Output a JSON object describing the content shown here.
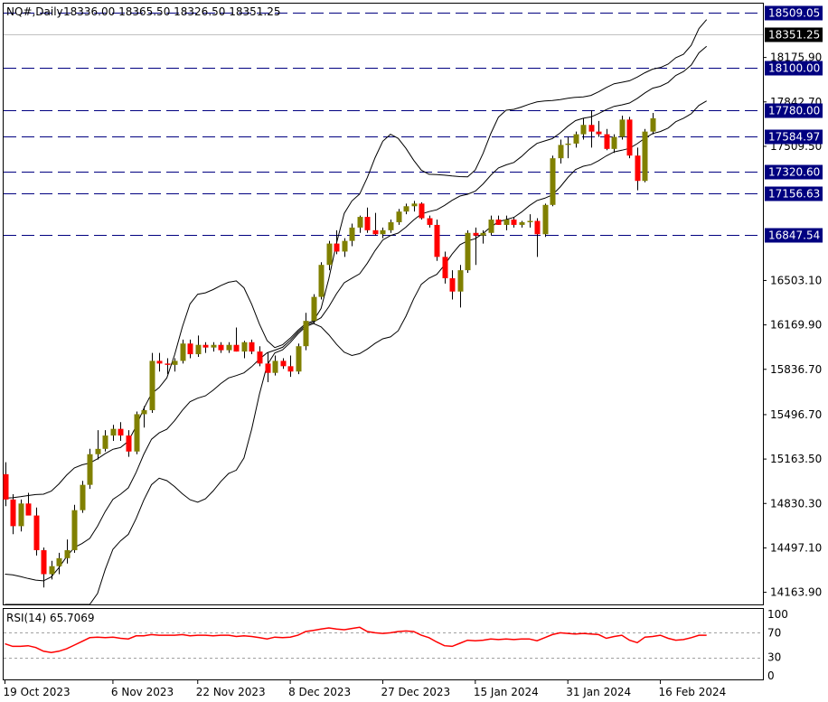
{
  "header": {
    "symbol": "NQ#,Daily",
    "ohlc": "18336.00 18365.50 18326.50 18351.25"
  },
  "colors": {
    "background": "#ffffff",
    "bull_candle": "#808000",
    "bear_candle": "#ff0000",
    "wick": "#000000",
    "bollinger": "#000000",
    "level_line": "#000080",
    "level_label_bg": "#000080",
    "current_label_bg": "#000000",
    "rsi_line": "#ff0000",
    "rsi_levels": "#a0a0a0"
  },
  "chart_data": [
    {
      "type": "candlestick",
      "title": "NQ#,Daily",
      "subtitle": "18336.00 18365.50 18326.50 18351.25",
      "y_axis_ticks": [
        "18175.90",
        "17842.70",
        "17509.50",
        "16503.10",
        "16169.90",
        "15836.70",
        "15496.70",
        "15163.50",
        "14830.30",
        "14497.10",
        "14163.90"
      ],
      "ylim": [
        14073,
        18580
      ],
      "x_axis_ticks": [
        {
          "label": "19 Oct 2023",
          "index": 0
        },
        {
          "label": "6 Nov 2023",
          "index": 14
        },
        {
          "label": "22 Nov 2023",
          "index": 25
        },
        {
          "label": "8 Dec 2023",
          "index": 37
        },
        {
          "label": "27 Dec 2023",
          "index": 49
        },
        {
          "label": "15 Jan 2024",
          "index": 61
        },
        {
          "label": "31 Jan 2024",
          "index": 73
        },
        {
          "label": "16 Feb 2024",
          "index": 85
        }
      ],
      "horizontal_levels": [
        "18509.05",
        "18100.00",
        "17780.00",
        "17584.97",
        "17320.60",
        "17156.63",
        "16847.54"
      ],
      "current_price_label": "18351.25",
      "candles": [
        [
          15050,
          15140,
          14810,
          14860
        ],
        [
          14860,
          14900,
          14600,
          14660
        ],
        [
          14660,
          14860,
          14620,
          14830
        ],
        [
          14830,
          14910,
          14780,
          14740
        ],
        [
          14740,
          14800,
          14440,
          14480
        ],
        [
          14480,
          14500,
          14200,
          14300
        ],
        [
          14300,
          14400,
          14260,
          14360
        ],
        [
          14360,
          14460,
          14300,
          14420
        ],
        [
          14420,
          14560,
          14380,
          14480
        ],
        [
          14480,
          14820,
          14460,
          14780
        ],
        [
          14780,
          15000,
          14760,
          14970
        ],
        [
          14970,
          15240,
          14940,
          15200
        ],
        [
          15200,
          15380,
          15160,
          15240
        ],
        [
          15240,
          15380,
          15220,
          15340
        ],
        [
          15340,
          15420,
          15300,
          15390
        ],
        [
          15390,
          15440,
          15300,
          15340
        ],
        [
          15340,
          15380,
          15180,
          15220
        ],
        [
          15220,
          15520,
          15200,
          15500
        ],
        [
          15500,
          15560,
          15400,
          15530
        ],
        [
          15530,
          15960,
          15510,
          15900
        ],
        [
          15900,
          15960,
          15820,
          15880
        ],
        [
          15880,
          15920,
          15800,
          15870
        ],
        [
          15870,
          15920,
          15820,
          15900
        ],
        [
          15900,
          16060,
          15880,
          16030
        ],
        [
          16030,
          16060,
          15920,
          15950
        ],
        [
          15950,
          16090,
          15930,
          16020
        ],
        [
          16020,
          16040,
          15960,
          16000
        ],
        [
          16000,
          16040,
          15970,
          16020
        ],
        [
          16020,
          16040,
          15960,
          15980
        ],
        [
          15980,
          16040,
          15960,
          16020
        ],
        [
          16020,
          16150,
          15970,
          15970
        ],
        [
          15970,
          16050,
          15920,
          16040
        ],
        [
          16040,
          16060,
          15950,
          15970
        ],
        [
          15970,
          16010,
          15860,
          15880
        ],
        [
          15880,
          15960,
          15740,
          15810
        ],
        [
          15810,
          15940,
          15790,
          15900
        ],
        [
          15900,
          15920,
          15840,
          15860
        ],
        [
          15860,
          15940,
          15780,
          15820
        ],
        [
          15820,
          16030,
          15800,
          16010
        ],
        [
          16010,
          16260,
          15980,
          16200
        ],
        [
          16200,
          16400,
          16180,
          16380
        ],
        [
          16380,
          16640,
          16360,
          16620
        ],
        [
          16620,
          16800,
          16580,
          16780
        ],
        [
          16780,
          16880,
          16700,
          16720
        ],
        [
          16720,
          16820,
          16680,
          16800
        ],
        [
          16800,
          16930,
          16760,
          16900
        ],
        [
          16900,
          16990,
          16860,
          16980
        ],
        [
          16980,
          17050,
          16860,
          16880
        ],
        [
          16880,
          17010,
          16840,
          16850
        ],
        [
          16850,
          16900,
          16820,
          16880
        ],
        [
          16880,
          16960,
          16860,
          16940
        ],
        [
          16940,
          17040,
          16920,
          17020
        ],
        [
          17020,
          17080,
          17000,
          17060
        ],
        [
          17060,
          17100,
          17020,
          17080
        ],
        [
          17080,
          17090,
          16960,
          16970
        ],
        [
          16970,
          16990,
          16900,
          16920
        ],
        [
          16920,
          16960,
          16650,
          16680
        ],
        [
          16680,
          16720,
          16480,
          16520
        ],
        [
          16520,
          16580,
          16360,
          16420
        ],
        [
          16420,
          16620,
          16300,
          16580
        ],
        [
          16580,
          16880,
          16560,
          16860
        ],
        [
          16860,
          16900,
          16620,
          16840
        ],
        [
          16840,
          16880,
          16780,
          16860
        ],
        [
          16860,
          16990,
          16840,
          16960
        ],
        [
          16960,
          16990,
          16920,
          16920
        ],
        [
          16920,
          16990,
          16880,
          16960
        ],
        [
          16960,
          16980,
          16900,
          16920
        ],
        [
          16920,
          16950,
          16900,
          16940
        ],
        [
          16940,
          17000,
          16900,
          16950
        ],
        [
          16950,
          16970,
          16680,
          16850
        ],
        [
          16850,
          17080,
          16830,
          17070
        ],
        [
          17070,
          17440,
          17060,
          17420
        ],
        [
          17420,
          17560,
          17380,
          17520
        ],
        [
          17520,
          17580,
          17420,
          17530
        ],
        [
          17530,
          17620,
          17500,
          17600
        ],
        [
          17600,
          17720,
          17560,
          17670
        ],
        [
          17670,
          17780,
          17500,
          17620
        ],
        [
          17620,
          17700,
          17580,
          17600
        ],
        [
          17600,
          17640,
          17480,
          17490
        ],
        [
          17490,
          17600,
          17460,
          17580
        ],
        [
          17580,
          17740,
          17560,
          17710
        ],
        [
          17710,
          17730,
          17420,
          17440
        ],
        [
          17440,
          17500,
          17180,
          17250
        ],
        [
          17250,
          17640,
          17240,
          17620
        ],
        [
          17620,
          17760,
          17600,
          17720
        ]
      ],
      "bollinger": {
        "period": 20,
        "upper_anchor": [
          [
            0,
            14870
          ],
          [
            5,
            14900
          ],
          [
            10,
            15120
          ],
          [
            15,
            15250
          ],
          [
            20,
            15700
          ],
          [
            25,
            16400
          ],
          [
            30,
            16500
          ],
          [
            35,
            16000
          ],
          [
            40,
            16200
          ],
          [
            45,
            17100
          ],
          [
            50,
            17600
          ],
          [
            55,
            17300
          ],
          [
            60,
            17280
          ],
          [
            65,
            17780
          ],
          [
            70,
            17850
          ],
          [
            75,
            17880
          ],
          [
            80,
            17990
          ],
          [
            85,
            18100
          ],
          [
            88,
            18200
          ],
          [
            91,
            18460
          ]
        ],
        "mid_anchor": [
          [
            0,
            14300
          ],
          [
            5,
            14250
          ],
          [
            10,
            14530
          ],
          [
            15,
            14900
          ],
          [
            20,
            15360
          ],
          [
            25,
            15620
          ],
          [
            30,
            15790
          ],
          [
            35,
            15980
          ],
          [
            40,
            16190
          ],
          [
            45,
            16520
          ],
          [
            50,
            16840
          ],
          [
            55,
            17020
          ],
          [
            60,
            17150
          ],
          [
            65,
            17370
          ],
          [
            70,
            17550
          ],
          [
            75,
            17720
          ],
          [
            80,
            17820
          ],
          [
            85,
            17960
          ],
          [
            88,
            18070
          ],
          [
            91,
            18260
          ]
        ],
        "lower_anchor": [
          [
            0,
            13700
          ],
          [
            5,
            13600
          ],
          [
            10,
            13940
          ],
          [
            15,
            14550
          ],
          [
            20,
            15020
          ],
          [
            25,
            14840
          ],
          [
            30,
            15080
          ],
          [
            35,
            15960
          ],
          [
            40,
            16180
          ],
          [
            45,
            15940
          ],
          [
            50,
            16080
          ],
          [
            55,
            16520
          ],
          [
            60,
            16800
          ],
          [
            65,
            16960
          ],
          [
            70,
            17120
          ],
          [
            75,
            17360
          ],
          [
            80,
            17480
          ],
          [
            85,
            17620
          ],
          [
            88,
            17720
          ],
          [
            91,
            17850
          ]
        ]
      }
    },
    {
      "type": "line",
      "title": "RSI(14) 65.7069",
      "y_axis_ticks": [
        "100",
        "70",
        "30",
        "0"
      ],
      "levels": [
        70,
        30
      ],
      "ylim": [
        0,
        100
      ],
      "series": [
        {
          "values": [
            52,
            48,
            48,
            49,
            46,
            40,
            38,
            40,
            44,
            50,
            56,
            62,
            63,
            62,
            63,
            61,
            60,
            65,
            65,
            67,
            66,
            66,
            66,
            67,
            65,
            66,
            66,
            65,
            66,
            66,
            64,
            65,
            64,
            62,
            60,
            63,
            62,
            63,
            66,
            72,
            74,
            76,
            78,
            76,
            75,
            77,
            79,
            72,
            70,
            69,
            70,
            72,
            73,
            72,
            66,
            62,
            55,
            49,
            48,
            53,
            58,
            57,
            58,
            60,
            59,
            60,
            59,
            60,
            60,
            57,
            62,
            67,
            70,
            69,
            68,
            69,
            68,
            67,
            61,
            64,
            66,
            58,
            54,
            63,
            64,
            66,
            61,
            58,
            59,
            62,
            66,
            66
          ]
        }
      ]
    }
  ]
}
